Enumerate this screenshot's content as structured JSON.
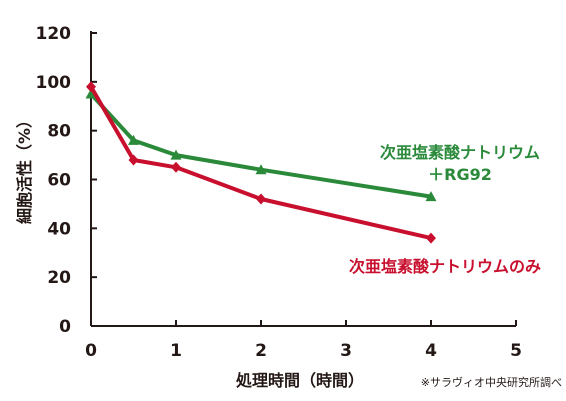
{
  "chart_data": {
    "type": "line",
    "xlabel": "処理時間（時間）",
    "ylabel": "細胞活性（%）",
    "xlim": [
      0,
      5
    ],
    "ylim": [
      0,
      120
    ],
    "xticks": [
      "0",
      "1",
      "2",
      "3",
      "4",
      "5"
    ],
    "yticks": [
      "0",
      "20",
      "40",
      "60",
      "80",
      "100",
      "120"
    ],
    "grid": false,
    "legend": "inline labels to the right of each line",
    "note": "※サラヴィオ中央研究所調べ",
    "series": [
      {
        "name_lines": [
          "次亜塩素酸ナトリウム",
          "＋RG92"
        ],
        "marker": "triangle",
        "color": "#2a8a3a",
        "x": [
          0,
          0.5,
          1,
          2,
          4
        ],
        "y": [
          95,
          76,
          70,
          64,
          53
        ]
      },
      {
        "name_lines": [
          "次亜塩素酸ナトリウムのみ"
        ],
        "marker": "diamond",
        "color": "#c8102e",
        "x": [
          0,
          0.5,
          1,
          2,
          4
        ],
        "y": [
          98,
          68,
          65,
          52,
          36
        ]
      }
    ]
  }
}
